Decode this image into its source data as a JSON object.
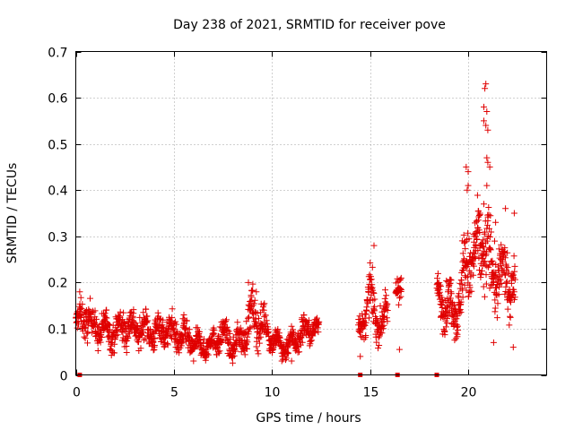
{
  "chart_data": {
    "type": "scatter",
    "title": "Day 238 of 2021, SRMTID for receiver pove",
    "xlabel": "GPS time / hours",
    "ylabel": "SRMTID / TECUs",
    "xlim": [
      0,
      24
    ],
    "ylim": [
      0,
      0.7
    ],
    "xticks": [
      0,
      5,
      10,
      15,
      20
    ],
    "xtick_labels": [
      "0",
      "5",
      "10",
      "15",
      "20"
    ],
    "yticks": [
      0,
      0.1,
      0.2,
      0.3,
      0.4,
      0.5,
      0.6,
      0.7
    ],
    "ytick_labels": [
      "0",
      "0.1",
      "0.2",
      "0.3",
      "0.4",
      "0.5",
      "0.6",
      "0.7"
    ],
    "grid": true,
    "marker": "+",
    "color": "#e00000",
    "series": [
      {
        "name": "SRMTID",
        "segments": [
          {
            "x": [
              0.0,
              0.5,
              1.0,
              1.5,
              2.0,
              2.5,
              3.0,
              3.5,
              4.0,
              4.5,
              5.0,
              5.5,
              6.0,
              6.5,
              7.0,
              7.5,
              8.0,
              8.5,
              9.0,
              9.5,
              10.0,
              10.5,
              11.0,
              11.5,
              12.0,
              12.4
            ],
            "y": [
              0.11,
              0.13,
              0.1,
              0.1,
              0.09,
              0.11,
              0.1,
              0.1,
              0.09,
              0.1,
              0.09,
              0.08,
              0.07,
              0.06,
              0.07,
              0.09,
              0.06,
              0.08,
              0.13,
              0.11,
              0.08,
              0.06,
              0.07,
              0.09,
              0.1,
              0.1
            ],
            "spread": [
              0.03,
              0.05,
              0.04,
              0.04,
              0.04,
              0.05,
              0.04,
              0.04,
              0.04,
              0.04,
              0.04,
              0.04,
              0.03,
              0.03,
              0.03,
              0.04,
              0.03,
              0.04,
              0.06,
              0.05,
              0.03,
              0.03,
              0.03,
              0.04,
              0.03,
              0.03
            ],
            "count": 1100
          },
          {
            "x": [
              14.4,
              14.7,
              15.0,
              15.3,
              15.6,
              15.9
            ],
            "y": [
              0.1,
              0.12,
              0.17,
              0.13,
              0.1,
              0.14
            ],
            "spread": [
              0.03,
              0.04,
              0.06,
              0.05,
              0.04,
              0.05
            ],
            "count": 140
          },
          {
            "x": [
              16.3,
              16.6
            ],
            "y": [
              0.16,
              0.19
            ],
            "spread": [
              0.04,
              0.04
            ],
            "count": 30
          },
          {
            "x": [
              18.4,
              18.8,
              19.2,
              19.6,
              20.0,
              20.4,
              20.8,
              21.2,
              21.6,
              22.0,
              22.4
            ],
            "y": [
              0.17,
              0.16,
              0.14,
              0.16,
              0.26,
              0.25,
              0.3,
              0.22,
              0.22,
              0.2,
              0.2
            ],
            "spread": [
              0.04,
              0.06,
              0.06,
              0.07,
              0.1,
              0.09,
              0.12,
              0.09,
              0.08,
              0.07,
              0.06
            ],
            "count": 420
          }
        ],
        "extremes": [
          {
            "x": 20.9,
            "y": 0.63
          },
          {
            "x": 20.85,
            "y": 0.62
          },
          {
            "x": 20.8,
            "y": 0.58
          },
          {
            "x": 20.95,
            "y": 0.57
          },
          {
            "x": 20.8,
            "y": 0.55
          },
          {
            "x": 20.9,
            "y": 0.54
          },
          {
            "x": 21.0,
            "y": 0.53
          },
          {
            "x": 20.95,
            "y": 0.47
          },
          {
            "x": 21.0,
            "y": 0.46
          },
          {
            "x": 21.1,
            "y": 0.45
          },
          {
            "x": 20.95,
            "y": 0.41
          },
          {
            "x": 19.9,
            "y": 0.45
          },
          {
            "x": 20.0,
            "y": 0.44
          },
          {
            "x": 20.0,
            "y": 0.41
          },
          {
            "x": 19.95,
            "y": 0.4
          },
          {
            "x": 20.8,
            "y": 0.37
          },
          {
            "x": 20.6,
            "y": 0.35
          },
          {
            "x": 21.4,
            "y": 0.33
          },
          {
            "x": 21.9,
            "y": 0.36
          },
          {
            "x": 22.35,
            "y": 0.35
          },
          {
            "x": 15.2,
            "y": 0.28
          },
          {
            "x": 19.7,
            "y": 0.29
          },
          {
            "x": 8.8,
            "y": 0.2
          },
          {
            "x": 9.2,
            "y": 0.18
          },
          {
            "x": 0.2,
            "y": 0.18
          },
          {
            "x": 16.5,
            "y": 0.055
          },
          {
            "x": 14.5,
            "y": 0.04
          },
          {
            "x": 11.0,
            "y": 0.03
          },
          {
            "x": 8.0,
            "y": 0.04
          },
          {
            "x": 6.0,
            "y": 0.03
          },
          {
            "x": 10.5,
            "y": 0.03
          },
          {
            "x": 22.3,
            "y": 0.06
          },
          {
            "x": 21.3,
            "y": 0.07
          }
        ]
      }
    ],
    "gap_markers_x": [
      0.2,
      14.5,
      16.4,
      18.4
    ]
  }
}
